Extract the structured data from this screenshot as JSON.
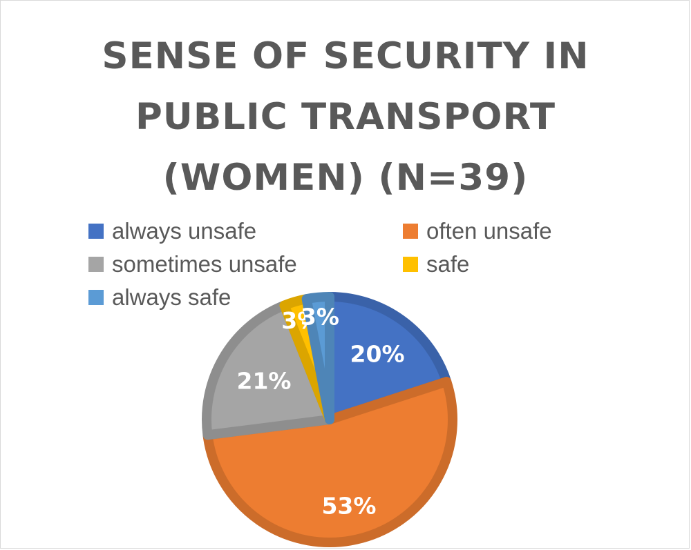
{
  "chart_data": {
    "type": "pie",
    "title": "SENSE OF SECURITY IN PUBLIC TRANSPORT (WOMEN) (N=39)",
    "title_lines": [
      "SENSE OF SECURITY IN",
      "PUBLIC TRANSPORT",
      "(WOMEN) (N=39)"
    ],
    "legend_position": "top",
    "categories": [
      "always unsafe",
      "often unsafe",
      "sometimes unsafe",
      "safe",
      "always safe"
    ],
    "values": [
      20,
      53,
      21,
      3,
      3
    ],
    "data_labels": [
      "20%",
      "53%",
      "21%",
      "3%",
      "3%"
    ],
    "colors": [
      "#4472C4",
      "#ED7D31",
      "#A5A5A5",
      "#FFC000",
      "#5B9BD5"
    ]
  }
}
